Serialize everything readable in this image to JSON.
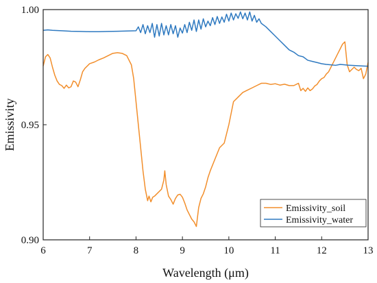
{
  "chart_data": {
    "type": "line",
    "title": "",
    "xlabel": "Wavelength (μm)",
    "ylabel": "Emissivity",
    "xlim": [
      6,
      13
    ],
    "ylim": [
      0.9,
      1.0
    ],
    "x_ticks": [
      "6",
      "7",
      "8",
      "9",
      "10",
      "11",
      "12",
      "13"
    ],
    "y_ticks": [
      "0.90",
      "0.95",
      "1.00"
    ],
    "grid": false,
    "legend_position": "bottom-right",
    "series": [
      {
        "name": "Emissivity_soil",
        "color": "#f28e2b",
        "x": [
          6.0,
          6.05,
          6.1,
          6.15,
          6.2,
          6.25,
          6.3,
          6.35,
          6.4,
          6.45,
          6.5,
          6.55,
          6.6,
          6.65,
          6.7,
          6.75,
          6.8,
          6.85,
          6.9,
          7.0,
          7.1,
          7.2,
          7.3,
          7.4,
          7.5,
          7.6,
          7.7,
          7.8,
          7.9,
          7.95,
          8.0,
          8.05,
          8.1,
          8.15,
          8.2,
          8.25,
          8.28,
          8.32,
          8.36,
          8.4,
          8.45,
          8.5,
          8.55,
          8.6,
          8.62,
          8.65,
          8.7,
          8.75,
          8.8,
          8.85,
          8.9,
          8.95,
          9.0,
          9.05,
          9.1,
          9.15,
          9.2,
          9.25,
          9.3,
          9.35,
          9.4,
          9.45,
          9.5,
          9.55,
          9.6,
          9.7,
          9.8,
          9.9,
          10.0,
          10.1,
          10.2,
          10.3,
          10.4,
          10.5,
          10.6,
          10.7,
          10.8,
          10.9,
          11.0,
          11.1,
          11.2,
          11.3,
          11.4,
          11.5,
          11.55,
          11.6,
          11.65,
          11.7,
          11.75,
          11.8,
          11.85,
          11.9,
          11.95,
          12.0,
          12.05,
          12.1,
          12.15,
          12.2,
          12.25,
          12.3,
          12.35,
          12.4,
          12.45,
          12.5,
          12.55,
          12.6,
          12.65,
          12.7,
          12.75,
          12.8,
          12.85,
          12.9,
          12.95,
          13.0
        ],
        "y": [
          0.9755,
          0.9795,
          0.9805,
          0.979,
          0.975,
          0.9715,
          0.969,
          0.9675,
          0.967,
          0.9658,
          0.9672,
          0.966,
          0.9665,
          0.969,
          0.9685,
          0.9665,
          0.9695,
          0.973,
          0.9745,
          0.9765,
          0.9772,
          0.9782,
          0.979,
          0.98,
          0.981,
          0.9813,
          0.981,
          0.98,
          0.976,
          0.97,
          0.96,
          0.95,
          0.94,
          0.93,
          0.922,
          0.917,
          0.919,
          0.9165,
          0.9185,
          0.919,
          0.92,
          0.921,
          0.922,
          0.926,
          0.93,
          0.924,
          0.919,
          0.9175,
          0.9155,
          0.918,
          0.9195,
          0.9198,
          0.9185,
          0.916,
          0.913,
          0.911,
          0.909,
          0.9078,
          0.9058,
          0.914,
          0.918,
          0.92,
          0.923,
          0.927,
          0.93,
          0.935,
          0.94,
          0.942,
          0.95,
          0.96,
          0.962,
          0.964,
          0.965,
          0.966,
          0.967,
          0.968,
          0.968,
          0.9675,
          0.9678,
          0.9672,
          0.9676,
          0.967,
          0.967,
          0.968,
          0.9648,
          0.9658,
          0.9645,
          0.966,
          0.9648,
          0.9655,
          0.9668,
          0.9675,
          0.969,
          0.97,
          0.9705,
          0.972,
          0.973,
          0.975,
          0.977,
          0.979,
          0.981,
          0.983,
          0.985,
          0.986,
          0.976,
          0.973,
          0.974,
          0.975,
          0.974,
          0.9735,
          0.9745,
          0.97,
          0.972,
          0.977
        ]
      },
      {
        "name": "Emissivity_water",
        "color": "#2e79c0",
        "x": [
          6.0,
          6.1,
          6.2,
          6.4,
          6.6,
          6.8,
          7.0,
          7.2,
          7.4,
          7.6,
          7.8,
          8.0,
          8.05,
          8.1,
          8.15,
          8.2,
          8.25,
          8.3,
          8.35,
          8.4,
          8.45,
          8.5,
          8.55,
          8.6,
          8.65,
          8.7,
          8.75,
          8.8,
          8.85,
          8.9,
          8.95,
          9.0,
          9.05,
          9.1,
          9.15,
          9.2,
          9.25,
          9.3,
          9.35,
          9.4,
          9.45,
          9.5,
          9.55,
          9.6,
          9.65,
          9.7,
          9.75,
          9.8,
          9.85,
          9.9,
          9.95,
          10.0,
          10.05,
          10.1,
          10.15,
          10.2,
          10.25,
          10.3,
          10.35,
          10.4,
          10.45,
          10.5,
          10.55,
          10.6,
          10.65,
          10.7,
          10.8,
          10.9,
          11.0,
          11.1,
          11.2,
          11.3,
          11.4,
          11.5,
          11.6,
          11.7,
          11.8,
          11.9,
          12.0,
          12.1,
          12.2,
          12.3,
          12.4,
          12.5,
          12.6,
          12.7,
          12.8,
          12.9,
          13.0
        ],
        "y": [
          0.991,
          0.9912,
          0.991,
          0.9908,
          0.9906,
          0.9905,
          0.9904,
          0.9904,
          0.9905,
          0.9906,
          0.9907,
          0.9908,
          0.9925,
          0.99,
          0.9935,
          0.9895,
          0.993,
          0.99,
          0.994,
          0.988,
          0.9935,
          0.9885,
          0.994,
          0.989,
          0.993,
          0.989,
          0.9935,
          0.9895,
          0.993,
          0.988,
          0.992,
          0.9898,
          0.9935,
          0.99,
          0.9945,
          0.991,
          0.9955,
          0.9905,
          0.9955,
          0.9915,
          0.996,
          0.9925,
          0.995,
          0.993,
          0.9965,
          0.9935,
          0.997,
          0.994,
          0.9968,
          0.9945,
          0.998,
          0.995,
          0.9985,
          0.9955,
          0.9982,
          0.9962,
          0.999,
          0.996,
          0.9985,
          0.9955,
          0.999,
          0.995,
          0.9975,
          0.9945,
          0.996,
          0.994,
          0.9925,
          0.9905,
          0.9885,
          0.9865,
          0.9845,
          0.9825,
          0.9815,
          0.98,
          0.9795,
          0.978,
          0.9775,
          0.977,
          0.9765,
          0.9762,
          0.976,
          0.9758,
          0.9762,
          0.976,
          0.9758,
          0.9757,
          0.9756,
          0.9755,
          0.9754
        ]
      }
    ]
  }
}
